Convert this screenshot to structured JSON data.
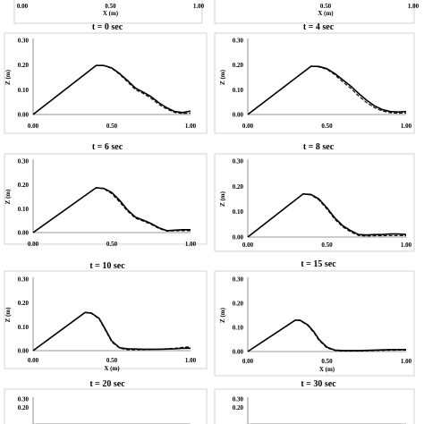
{
  "chart_data": [
    {
      "type": "line",
      "title": "",
      "xlabel": "X (m)",
      "ylabel": "",
      "xlim": [
        0,
        1
      ],
      "ylim": [
        0,
        0.3
      ],
      "xticks": [
        "0.00",
        "0.50",
        "1.00"
      ],
      "yticks": [],
      "series": []
    },
    {
      "type": "line",
      "title": "",
      "xlabel": "X (m)",
      "ylabel": "",
      "xlim": [
        0,
        1
      ],
      "ylim": [
        0,
        0.3
      ],
      "xticks": [
        "0.50",
        "1.00"
      ],
      "yticks": [],
      "series": []
    },
    {
      "type": "line",
      "title": "t = 0 sec",
      "xlabel": "",
      "ylabel": "Z (m)",
      "xlim": [
        0,
        1
      ],
      "ylim": [
        0,
        0.3
      ],
      "xticks": [
        "0.00",
        "0.50",
        "1.00"
      ],
      "yticks": [
        "0.00",
        "0.10",
        "0.20",
        "0.30"
      ],
      "series": [
        {
          "style": "solid",
          "x": [
            0,
            0.4,
            0.45,
            0.5,
            0.55,
            0.6,
            0.65,
            0.7,
            0.75,
            0.8,
            0.85,
            0.9,
            0.95,
            1.0
          ],
          "y": [
            0,
            0.198,
            0.198,
            0.188,
            0.165,
            0.137,
            0.107,
            0.09,
            0.072,
            0.047,
            0.027,
            0.012,
            0.008,
            0.014
          ]
        },
        {
          "style": "dashed",
          "x": [
            0,
            0.4,
            0.45,
            0.5,
            0.55,
            0.6,
            0.65,
            0.7,
            0.75,
            0.8,
            0.85,
            0.9,
            0.95,
            1.0
          ],
          "y": [
            0,
            0.198,
            0.197,
            0.186,
            0.162,
            0.132,
            0.1,
            0.085,
            0.065,
            0.04,
            0.022,
            0.008,
            0.004,
            0.006
          ]
        }
      ]
    },
    {
      "type": "line",
      "title": "t = 4 sec",
      "xlabel": "",
      "ylabel": "Z (m)",
      "xlim": [
        0,
        1
      ],
      "ylim": [
        0,
        0.3
      ],
      "xticks": [
        "0.00",
        "0.50",
        "1.00"
      ],
      "yticks": [
        "0.00",
        "0.10",
        "0.20",
        "0.30"
      ],
      "series": [
        {
          "style": "solid",
          "x": [
            0,
            0.4,
            0.45,
            0.5,
            0.55,
            0.6,
            0.65,
            0.7,
            0.75,
            0.8,
            0.85,
            0.9,
            0.95,
            1.0
          ],
          "y": [
            0,
            0.195,
            0.194,
            0.185,
            0.165,
            0.14,
            0.115,
            0.085,
            0.058,
            0.035,
            0.02,
            0.012,
            0.01,
            0.012
          ]
        },
        {
          "style": "dashed",
          "x": [
            0,
            0.4,
            0.45,
            0.5,
            0.55,
            0.6,
            0.65,
            0.7,
            0.75,
            0.8,
            0.85,
            0.9,
            0.95,
            1.0
          ],
          "y": [
            0,
            0.195,
            0.192,
            0.182,
            0.16,
            0.132,
            0.106,
            0.075,
            0.048,
            0.028,
            0.014,
            0.007,
            0.005,
            0.006
          ]
        }
      ]
    },
    {
      "type": "line",
      "title": "t = 6 sec",
      "xlabel": "",
      "ylabel": "Z (m)",
      "xlim": [
        0,
        1
      ],
      "ylim": [
        0,
        0.3
      ],
      "xticks": [
        "0.00",
        "0.50",
        "1.00"
      ],
      "yticks": [
        "0.00",
        "0.10",
        "0.20",
        "0.30"
      ],
      "series": [
        {
          "style": "solid",
          "x": [
            0,
            0.4,
            0.45,
            0.5,
            0.55,
            0.6,
            0.65,
            0.7,
            0.75,
            0.8,
            0.85,
            0.9,
            0.95,
            1.0
          ],
          "y": [
            0,
            0.188,
            0.185,
            0.168,
            0.135,
            0.095,
            0.065,
            0.052,
            0.038,
            0.02,
            0.008,
            0.01,
            0.012,
            0.012
          ]
        },
        {
          "style": "dashed",
          "x": [
            0,
            0.4,
            0.45,
            0.5,
            0.55,
            0.6,
            0.65,
            0.7,
            0.75,
            0.8,
            0.85,
            0.9,
            0.95,
            1.0
          ],
          "y": [
            0,
            0.188,
            0.183,
            0.163,
            0.128,
            0.09,
            0.06,
            0.048,
            0.034,
            0.017,
            0.006,
            0.007,
            0.008,
            0.008
          ]
        }
      ]
    },
    {
      "type": "line",
      "title": "t = 8 sec",
      "xlabel": "",
      "ylabel": "Z (m)",
      "xlim": [
        0,
        1
      ],
      "ylim": [
        0,
        0.3
      ],
      "xticks": [
        "0.00",
        "0.50",
        "1.00"
      ],
      "yticks": [
        "0.00",
        "0.10",
        "0.20",
        "0.30"
      ],
      "series": [
        {
          "style": "solid",
          "x": [
            0,
            0.35,
            0.4,
            0.45,
            0.5,
            0.55,
            0.6,
            0.65,
            0.7,
            0.75,
            0.8,
            0.85,
            0.9,
            0.95,
            1.0
          ],
          "y": [
            0,
            0.17,
            0.168,
            0.15,
            0.115,
            0.075,
            0.045,
            0.025,
            0.01,
            0.008,
            0.01,
            0.01,
            0.012,
            0.012,
            0.01
          ]
        },
        {
          "style": "dashed",
          "x": [
            0,
            0.35,
            0.4,
            0.45,
            0.5,
            0.55,
            0.6,
            0.65,
            0.7,
            0.75,
            0.8,
            0.85,
            0.9,
            0.95,
            1.0
          ],
          "y": [
            0,
            0.17,
            0.166,
            0.146,
            0.11,
            0.07,
            0.04,
            0.02,
            0.006,
            0.004,
            0.005,
            0.005,
            0.006,
            0.006,
            0.005
          ]
        }
      ]
    },
    {
      "type": "line",
      "title": "t = 10 sec",
      "xlabel": "X (m)",
      "ylabel": "Z (m)",
      "xlim": [
        0,
        1
      ],
      "ylim": [
        0,
        0.3
      ],
      "xticks": [
        "0.00",
        "0.50",
        "1.00"
      ],
      "yticks": [
        "0.00",
        "0.10",
        "0.20",
        "0.30"
      ],
      "series": [
        {
          "style": "solid",
          "x": [
            0,
            0.33,
            0.37,
            0.42,
            0.45,
            0.5,
            0.55,
            0.6,
            0.7,
            0.8,
            0.9,
            0.95,
            1.0
          ],
          "y": [
            0,
            0.16,
            0.158,
            0.135,
            0.1,
            0.04,
            0.012,
            0.008,
            0.006,
            0.006,
            0.008,
            0.01,
            0.01
          ]
        },
        {
          "style": "dashed",
          "x": [
            0,
            0.33,
            0.37,
            0.42,
            0.45,
            0.5,
            0.55,
            0.6,
            0.7,
            0.8,
            0.9,
            0.95,
            1.0
          ],
          "y": [
            0,
            0.16,
            0.156,
            0.132,
            0.096,
            0.036,
            0.01,
            0.004,
            0.004,
            0.006,
            0.01,
            0.014,
            0.016
          ]
        }
      ]
    },
    {
      "type": "line",
      "title": "t = 15 sec",
      "xlabel": "X (m)",
      "ylabel": "Z (m)",
      "xlim": [
        0,
        1
      ],
      "ylim": [
        0,
        0.3
      ],
      "xticks": [
        "0.00",
        "0.50",
        "1.00"
      ],
      "yticks": [
        "0.00",
        "0.10",
        "0.20",
        "0.30"
      ],
      "series": [
        {
          "style": "solid",
          "x": [
            0,
            0.3,
            0.33,
            0.38,
            0.42,
            0.45,
            0.5,
            0.55,
            0.6,
            0.7,
            0.8,
            0.9,
            1.0
          ],
          "y": [
            0,
            0.13,
            0.13,
            0.11,
            0.08,
            0.05,
            0.018,
            0.006,
            0.004,
            0.004,
            0.006,
            0.008,
            0.008
          ]
        },
        {
          "style": "dashed",
          "x": [
            0,
            0.3,
            0.33,
            0.38,
            0.42,
            0.45,
            0.5,
            0.55,
            0.6,
            0.7,
            0.8,
            0.9,
            1.0
          ],
          "y": [
            0,
            0.13,
            0.128,
            0.107,
            0.076,
            0.046,
            0.015,
            0.004,
            0.002,
            0.002,
            0.004,
            0.005,
            0.006
          ]
        }
      ]
    },
    {
      "type": "line",
      "title": "t = 20 sec",
      "xlabel": "",
      "ylabel": "",
      "xlim": [
        0,
        1
      ],
      "ylim": [
        0,
        0.3
      ],
      "xticks": [],
      "yticks": [
        "0.20",
        "0.30"
      ],
      "series": []
    },
    {
      "type": "line",
      "title": "t = 30 sec",
      "xlabel": "",
      "ylabel": "",
      "xlim": [
        0,
        1
      ],
      "ylim": [
        0,
        0.3
      ],
      "xticks": [],
      "yticks": [
        "0.20",
        "0.30"
      ],
      "series": []
    }
  ]
}
